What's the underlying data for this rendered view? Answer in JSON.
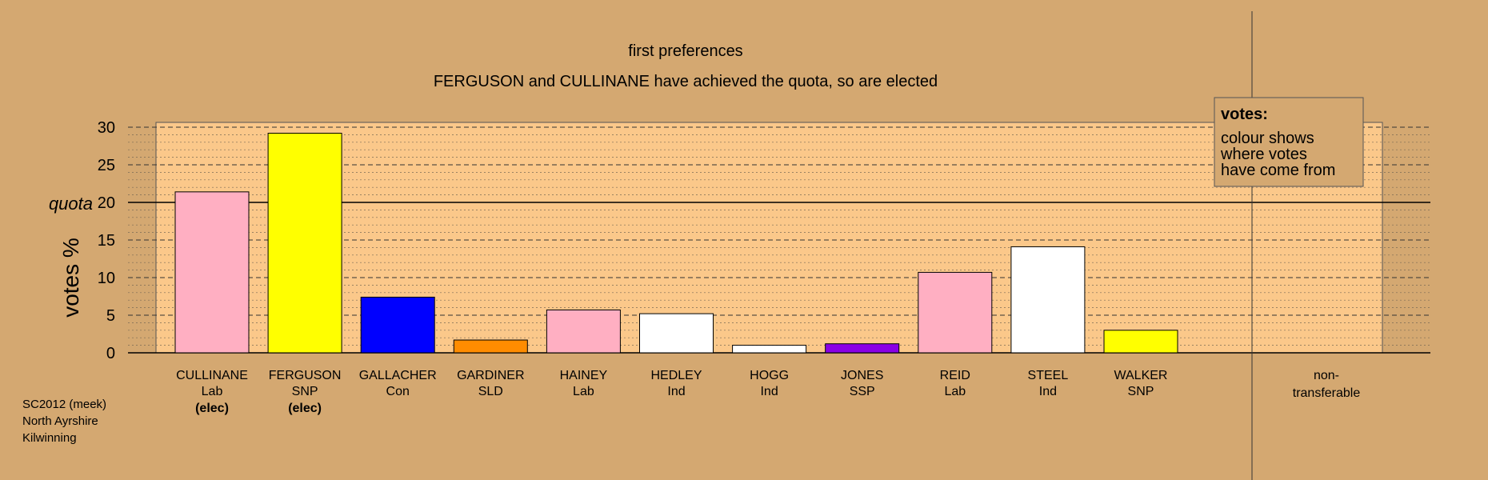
{
  "chart_data": {
    "type": "bar",
    "title": "first preferences",
    "subtitle": "FERGUSON and CULLINANE have achieved the quota, so are elected",
    "ylabel": "votes %",
    "ylim": [
      0,
      30
    ],
    "yticks": [
      0,
      5,
      10,
      15,
      20,
      25,
      30
    ],
    "quota": {
      "label": "quota",
      "value": 20
    },
    "grid": "dashed major, dotted minor",
    "categories": [
      "CULLINANE",
      "FERGUSON",
      "GALLACHER",
      "GARDINER",
      "HAINEY",
      "HEDLEY",
      "HOGG",
      "JONES",
      "REID",
      "STEEL",
      "WALKER"
    ],
    "parties": [
      "Lab",
      "SNP",
      "Con",
      "SLD",
      "Lab",
      "Ind",
      "Ind",
      "SSP",
      "Lab",
      "Ind",
      "SNP"
    ],
    "status": [
      "(elec)",
      "(elec)",
      "",
      "",
      "",
      "",
      "",
      "",
      "",
      "",
      ""
    ],
    "values": [
      21.4,
      29.2,
      7.4,
      1.7,
      5.7,
      5.2,
      1.0,
      1.2,
      10.7,
      14.1,
      3.0
    ],
    "colors": [
      "#ffafc2",
      "#ffff00",
      "#0000ff",
      "#ff8c00",
      "#ffafc2",
      "#ffffff",
      "#ffffff",
      "#8a00e6",
      "#ffafc2",
      "#ffffff",
      "#ffff00"
    ],
    "non_transferable": {
      "label_line1": "non-",
      "label_line2": "transferable",
      "value": 0
    },
    "legend": {
      "title": "votes:",
      "lines": [
        "colour shows",
        "where votes",
        "have come from"
      ],
      "placement": "top-right"
    }
  },
  "footer": {
    "line1": "SC2012 (meek)",
    "line2": "North Ayrshire",
    "line3": "Kilwinning"
  },
  "colors": {
    "background": "#d4a871",
    "plot_area": "#fbc88a",
    "axis": "#000000"
  }
}
